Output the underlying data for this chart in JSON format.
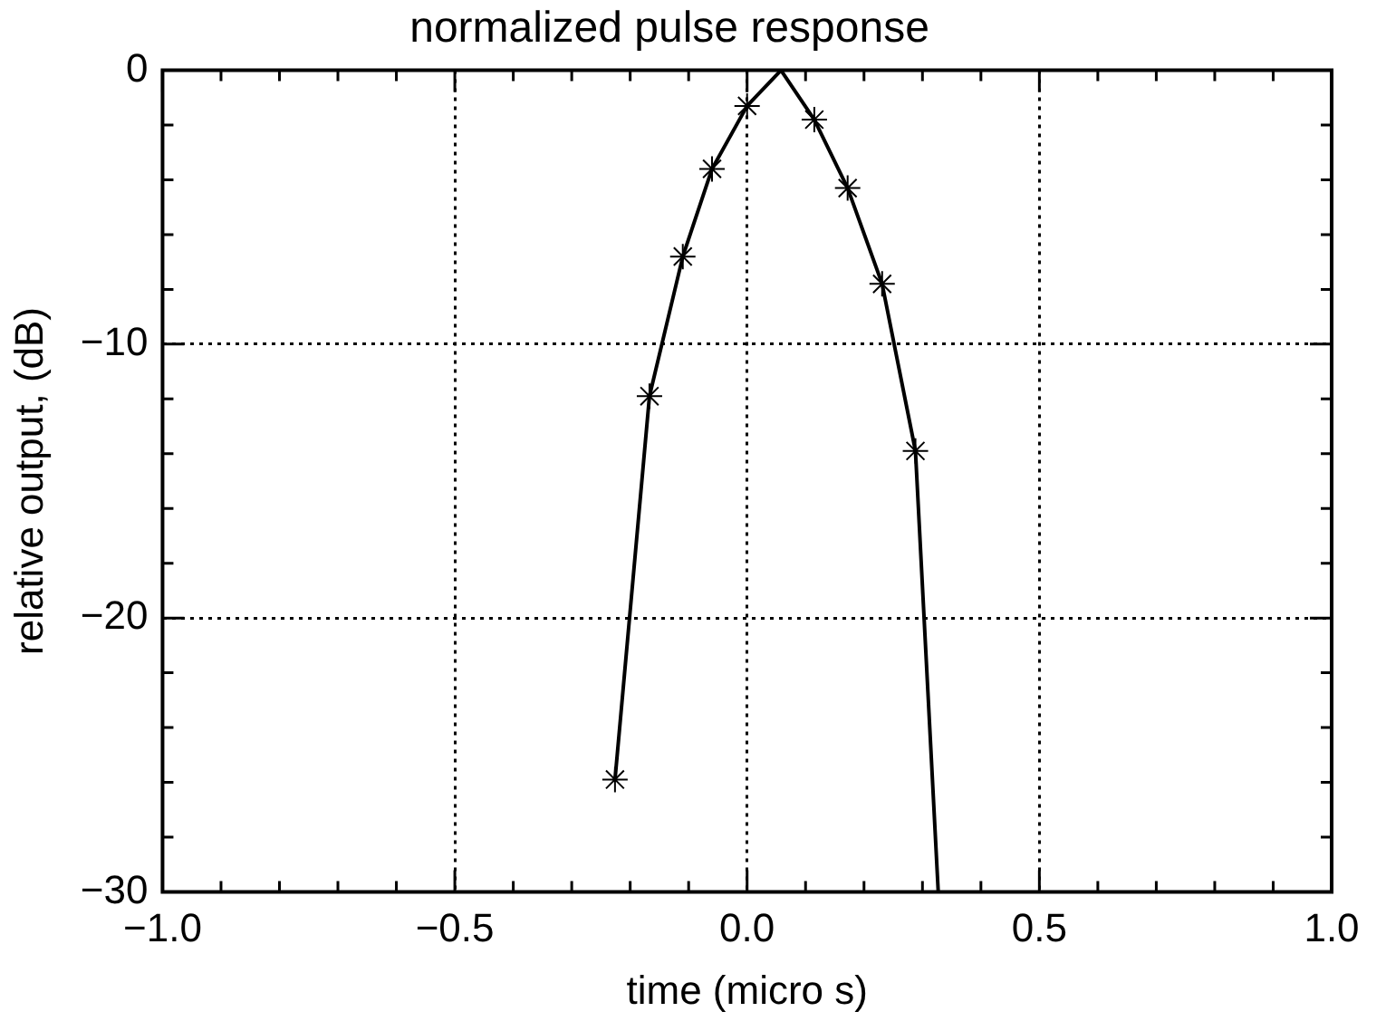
{
  "chart_data": {
    "type": "line",
    "title": "normalized pulse response",
    "xlabel": "time (micro s)",
    "ylabel": "relative output, (dB)",
    "xlim": [
      -1.0,
      1.0
    ],
    "xticks": [
      {
        "value": -1.0,
        "label": "−1.0"
      },
      {
        "value": -0.5,
        "label": "−0.5"
      },
      {
        "value": 0.0,
        "label": "0.0"
      },
      {
        "value": 0.5,
        "label": "0.5"
      },
      {
        "value": 1.0,
        "label": "1.0"
      }
    ],
    "ylim": [
      -30,
      0
    ],
    "yticks": [
      {
        "value": -30,
        "label": "−30"
      },
      {
        "value": -20,
        "label": "−20"
      },
      {
        "value": -10,
        "label": "−10"
      },
      {
        "value": 0,
        "label": "0"
      }
    ],
    "grid": true,
    "line_style": "solid",
    "series": [
      {
        "color": "#000000",
        "marker": "none",
        "x": [
          -0.226,
          -0.167,
          -0.11,
          -0.06,
          0.0,
          0.058,
          0.115,
          0.172,
          0.231,
          0.288,
          0.327
        ],
        "values": [
          -25.9,
          -11.9,
          -6.8,
          -3.6,
          -1.3,
          0,
          -1.8,
          -4.3,
          -7.8,
          -13.9,
          -30
        ]
      },
      {
        "type": "scatter",
        "color": "#000000",
        "marker": "cross",
        "x": [
          -0.226,
          -0.167,
          -0.11,
          -0.06,
          0.0,
          0.115,
          0.172,
          0.231,
          0.288
        ],
        "values": [
          -25.9,
          -11.9,
          -6.8,
          -3.6,
          -1.3,
          -1.8,
          -4.3,
          -7.8,
          -13.9
        ]
      }
    ]
  }
}
